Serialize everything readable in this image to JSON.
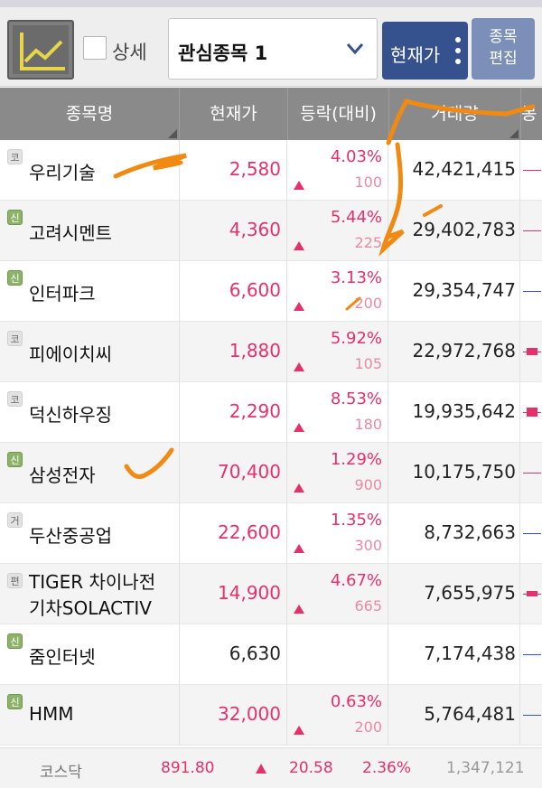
{
  "toolbar": {
    "chart_icon": "line-chart-icon",
    "detail_label": "상세",
    "group_select": "관심종목 1",
    "price_button": "현재가",
    "edit_button_line1": "종목",
    "edit_button_line2": "편집"
  },
  "columns": [
    "종목명",
    "현재가",
    "등락(대비)",
    "거래량",
    "봉"
  ],
  "rows": [
    {
      "badge": "코",
      "badge_color": "gray",
      "name": "우리기술",
      "price": "2,580",
      "pct": "4.03%",
      "diff": "100",
      "volume": "42,421,415",
      "direction": "up"
    },
    {
      "badge": "신",
      "badge_color": "green",
      "name": "고려시멘트",
      "price": "4,360",
      "pct": "5.44%",
      "diff": "225",
      "volume": "29,402,783",
      "direction": "up"
    },
    {
      "badge": "신",
      "badge_color": "green",
      "name": "인터파크",
      "price": "6,600",
      "pct": "3.13%",
      "diff": "200",
      "volume": "29,354,747",
      "direction": "up"
    },
    {
      "badge": "코",
      "badge_color": "gray",
      "name": "피에이치씨",
      "price": "1,880",
      "pct": "5.92%",
      "diff": "105",
      "volume": "22,972,768",
      "direction": "up"
    },
    {
      "badge": "코",
      "badge_color": "gray",
      "name": "덕신하우징",
      "price": "2,290",
      "pct": "8.53%",
      "diff": "180",
      "volume": "19,935,642",
      "direction": "up"
    },
    {
      "badge": "신",
      "badge_color": "green",
      "name": "삼성전자",
      "price": "70,400",
      "pct": "1.29%",
      "diff": "900",
      "volume": "10,175,750",
      "direction": "up"
    },
    {
      "badge": "거",
      "badge_color": "gray",
      "name": "두산중공업",
      "price": "22,600",
      "pct": "1.35%",
      "diff": "300",
      "volume": "8,732,663",
      "direction": "up"
    },
    {
      "badge": "편",
      "badge_color": "gray",
      "name_line1": "TIGER 차이나전",
      "name_line2": "기차SOLACTIV",
      "price": "14,900",
      "pct": "4.67%",
      "diff": "665",
      "volume": "7,655,975",
      "direction": "up"
    },
    {
      "badge": "신",
      "badge_color": "green",
      "name": "줌인터넷",
      "price": "6,630",
      "pct": "",
      "diff": "",
      "volume": "7,174,438",
      "direction": "flat"
    },
    {
      "badge": "신",
      "badge_color": "green",
      "name": "HMM",
      "price": "32,000",
      "pct": "0.63%",
      "diff": "200",
      "volume": "5,764,481",
      "direction": "up"
    }
  ],
  "footer": {
    "label": "코스닥",
    "index": "891.80",
    "change": "20.58",
    "pct": "2.36%",
    "volume": "1,347,121"
  },
  "colors": {
    "up": "#e6306b",
    "header_bg": "#8a8a8a",
    "button_blue": "#35528e",
    "annotation_orange": "#f08a12"
  }
}
